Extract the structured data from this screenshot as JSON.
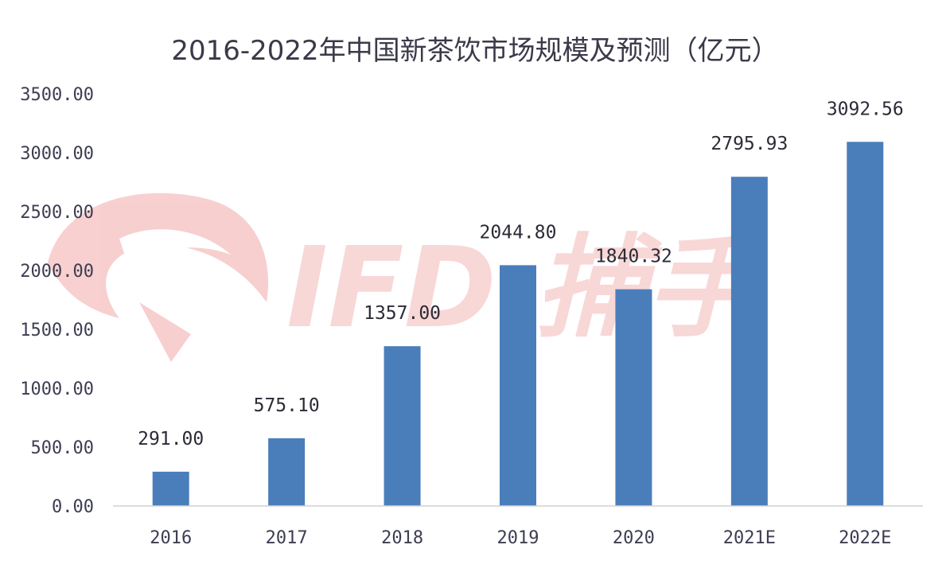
{
  "chart_data": {
    "type": "bar",
    "title": "2016-2022年中国新茶饮市场规模及预测（亿元）",
    "categories": [
      "2016",
      "2017",
      "2018",
      "2019",
      "2020",
      "2021E",
      "2022E"
    ],
    "values": [
      291.0,
      575.1,
      1357.0,
      2044.8,
      1840.32,
      2795.93,
      3092.56
    ],
    "value_labels": [
      "291.00",
      "575.10",
      "1357.00",
      "2044.80",
      "1840.32",
      "2795.93",
      "3092.56"
    ],
    "yticks": [
      "0.00",
      "500.00",
      "1000.00",
      "1500.00",
      "2000.00",
      "2500.00",
      "3000.00",
      "3500.00"
    ],
    "ylim": [
      0,
      3500
    ],
    "xlabel": "",
    "ylabel": "",
    "grid": false,
    "bar_color": "#4a7ebb"
  },
  "watermark": {
    "text": "IFD 捕手",
    "color_primary": "#f4b8b8",
    "color_secondary": "#d6d6d6"
  }
}
